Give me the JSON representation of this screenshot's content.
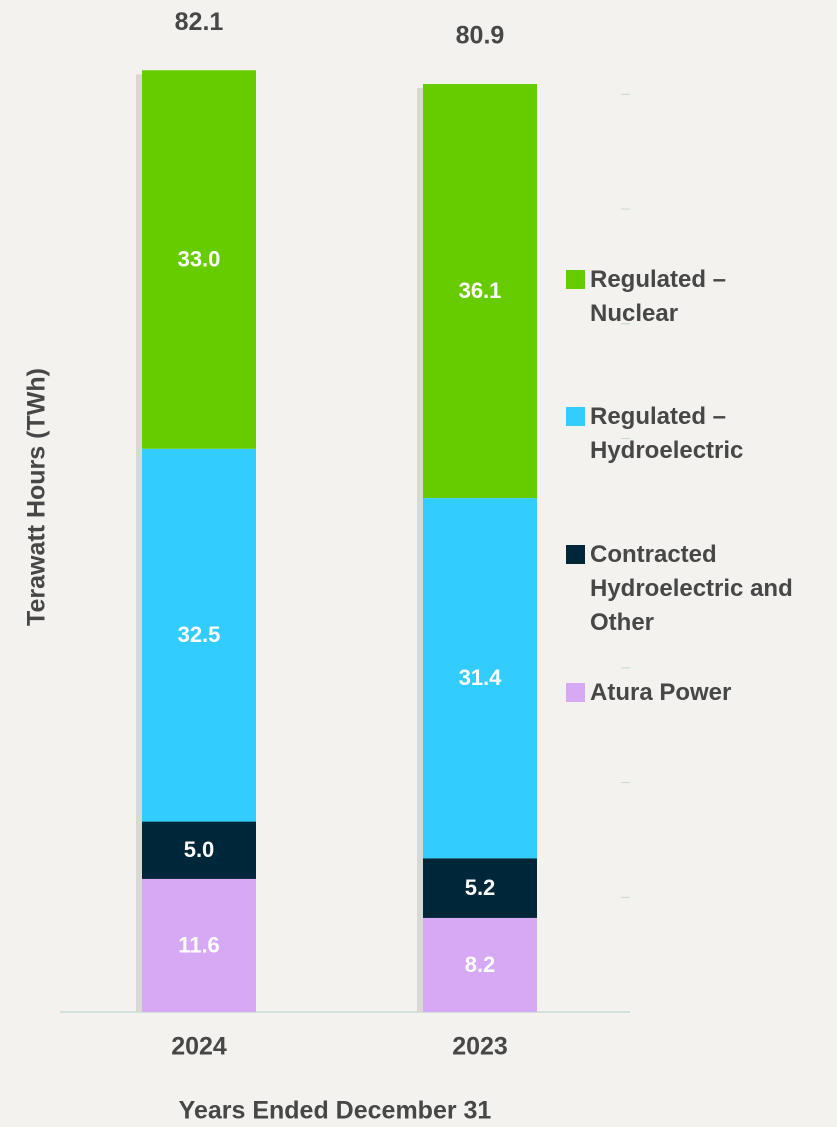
{
  "chart_data": {
    "type": "stacked_bar",
    "x_label": "Years Ended December 31",
    "y_label": "Terawatt Hours (TWh)",
    "categories": [
      "2024",
      "2023"
    ],
    "totals": [
      82.1,
      80.9
    ],
    "series": [
      {
        "name": "Atura Power",
        "color": "#d7a8f3",
        "values": [
          11.6,
          8.2
        ]
      },
      {
        "name": "Contracted Hydroelectric and Other",
        "color": "#00263a",
        "values": [
          5,
          5.2
        ],
        "value_labels": [
          "5.0",
          "5.2"
        ]
      },
      {
        "name": "Regulated – Hydroelectric",
        "color": "#33ccff",
        "values": [
          32.5,
          31.4
        ]
      },
      {
        "name": "Regulated – Nuclear",
        "color": "#66cc00",
        "values": [
          33,
          36.1
        ],
        "value_labels": [
          "33.0",
          "36.1"
        ]
      }
    ],
    "ylim": [
      0,
      85
    ],
    "yticks": [
      0,
      10,
      20,
      30,
      40,
      50,
      60,
      70,
      80
    ],
    "grid": false
  }
}
